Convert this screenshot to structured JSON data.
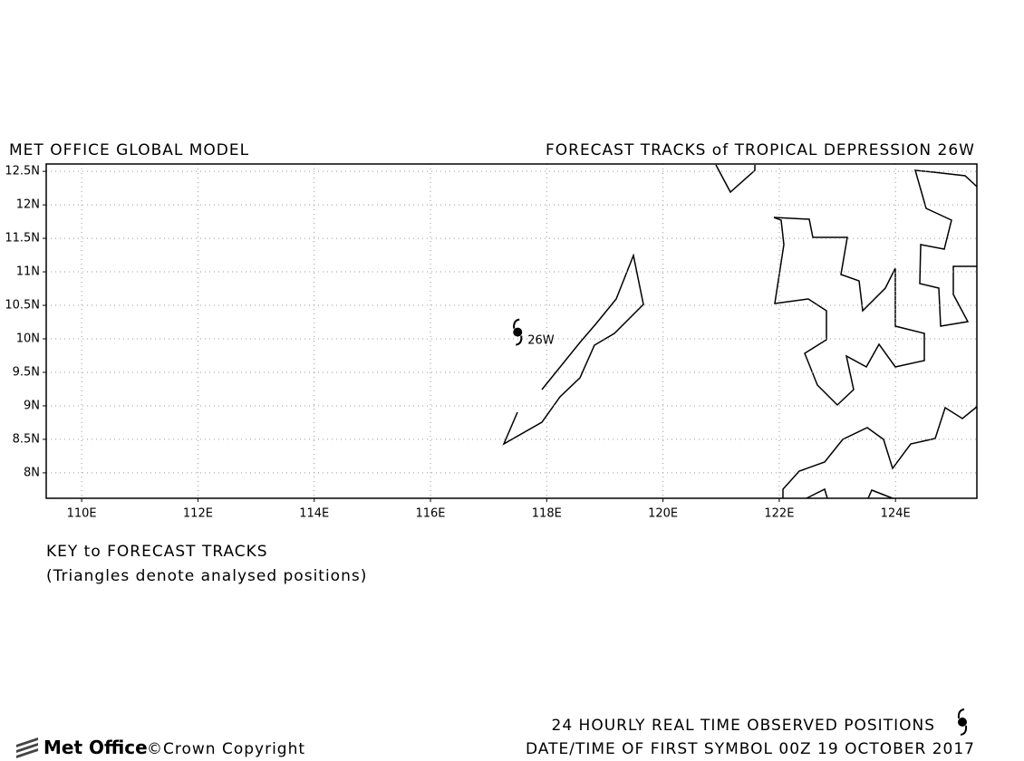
{
  "chart_data": {
    "type": "map",
    "title_left": "MET OFFICE GLOBAL MODEL",
    "title_right": "FORECAST TRACKS of TROPICAL DEPRESSION 26W",
    "xlim": [
      109.39,
      125.4
    ],
    "ylim": [
      7.62,
      12.61
    ],
    "xticks": [
      {
        "value": 110,
        "label": "110E"
      },
      {
        "value": 112,
        "label": "112E"
      },
      {
        "value": 114,
        "label": "114E"
      },
      {
        "value": 116,
        "label": "116E"
      },
      {
        "value": 118,
        "label": "118E"
      },
      {
        "value": 120,
        "label": "120E"
      },
      {
        "value": 122,
        "label": "122E"
      },
      {
        "value": 124,
        "label": "124E"
      }
    ],
    "yticks": [
      {
        "value": 8,
        "label": "8N"
      },
      {
        "value": 8.5,
        "label": "8.5N"
      },
      {
        "value": 9,
        "label": "9N"
      },
      {
        "value": 9.5,
        "label": "9.5N"
      },
      {
        "value": 10,
        "label": "10N"
      },
      {
        "value": 10.5,
        "label": "10.5N"
      },
      {
        "value": 11,
        "label": "11N"
      },
      {
        "value": 11.5,
        "label": "11.5N"
      },
      {
        "value": 12,
        "label": "12N"
      },
      {
        "value": 12.5,
        "label": "12.5N"
      }
    ],
    "grid": true,
    "storm": {
      "label": "26W",
      "lon": 117.5,
      "lat": 10.1
    },
    "key_title": "KEY to FORECAST TRACKS",
    "key_note": "(Triangles denote analysed positions)",
    "footer_observed": "24 HOURLY REAL TIME OBSERVED POSITIONS",
    "footer_datetime": "DATE/TIME OF FIRST SYMBOL 00Z 19 OCTOBER 2017",
    "logo": "Met Office",
    "copyright": "©Crown Copyright"
  }
}
